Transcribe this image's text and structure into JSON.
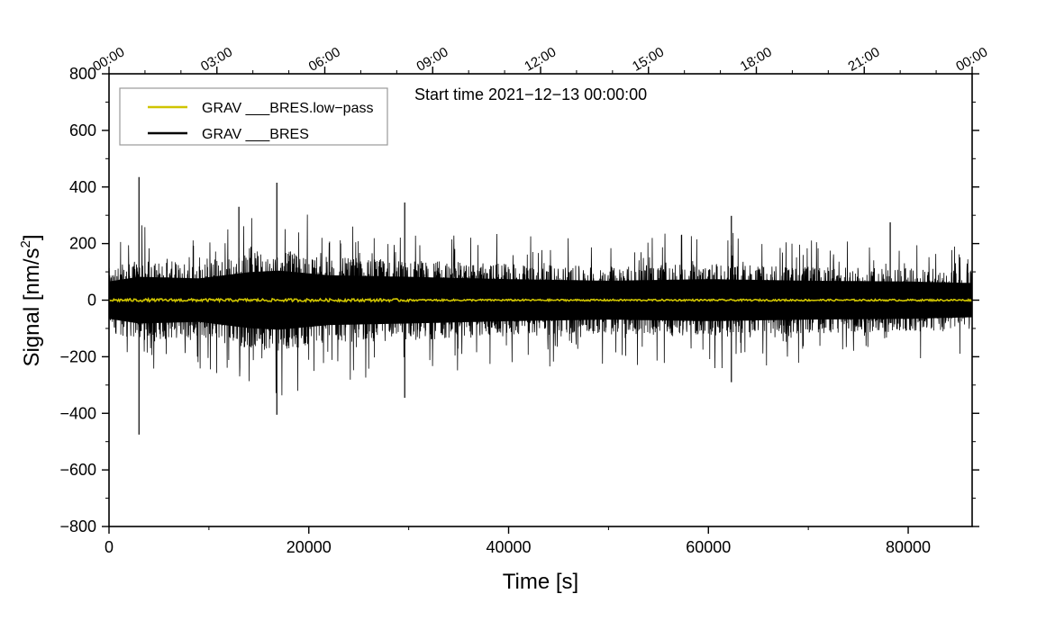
{
  "chart_data": {
    "type": "line",
    "title": "",
    "annotation": "Start time 2021−12−13 00:00:00",
    "xlabel": "Time [s]",
    "ylabel_main": "Signal [nm/s",
    "ylabel_sup": "2",
    "ylabel_end": "]",
    "xlim": [
      0,
      86400
    ],
    "ylim": [
      -800,
      800
    ],
    "x_ticks": [
      0,
      20000,
      40000,
      60000,
      80000
    ],
    "x_tick_labels": [
      "0",
      "20000",
      "40000",
      "60000",
      "80000"
    ],
    "y_ticks": [
      -800,
      -600,
      -400,
      -200,
      0,
      200,
      400,
      600,
      800
    ],
    "y_tick_labels": [
      "−800",
      "−600",
      "−400",
      "−200",
      "0",
      "200",
      "400",
      "600",
      "800"
    ],
    "top_axis_ticks": [
      0,
      10800,
      21600,
      32400,
      43200,
      54000,
      64800,
      75600,
      86400
    ],
    "top_axis_labels": [
      "00:00",
      "03:00",
      "06:00",
      "09:00",
      "12:00",
      "15:00",
      "18:00",
      "21:00",
      "00:00"
    ],
    "legend_position": "top-left",
    "series": [
      {
        "name": "GRAV ___BRES.low−pass",
        "color": "#cfc400",
        "description": "low-pass filtered residual, approx -5 to 5 nm/s2 around zero",
        "approx_amplitude": 5
      },
      {
        "name": "GRAV ___BRES",
        "color": "#000000",
        "description": "raw gravity residual, noise band approx +/-100 to +/-200 nm/s2",
        "envelope": [
          {
            "t": 0,
            "amp": 120
          },
          {
            "t": 3000,
            "amp": 150
          },
          {
            "t": 9000,
            "amp": 140
          },
          {
            "t": 14000,
            "amp": 180
          },
          {
            "t": 17000,
            "amp": 190
          },
          {
            "t": 22000,
            "amp": 160
          },
          {
            "t": 30000,
            "amp": 150
          },
          {
            "t": 40000,
            "amp": 135
          },
          {
            "t": 50000,
            "amp": 125
          },
          {
            "t": 60000,
            "amp": 135
          },
          {
            "t": 70000,
            "amp": 125
          },
          {
            "t": 80000,
            "amp": 120
          },
          {
            "t": 86400,
            "amp": 110
          }
        ],
        "spikes": [
          {
            "t": 3000,
            "value": 435
          },
          {
            "t": 3000,
            "value": -475
          },
          {
            "t": 16800,
            "value": 415
          },
          {
            "t": 16800,
            "value": -405
          },
          {
            "t": 13000,
            "value": 330
          },
          {
            "t": 29600,
            "value": 345
          },
          {
            "t": 29600,
            "value": -345
          },
          {
            "t": 62300,
            "value": 298
          },
          {
            "t": 62300,
            "value": -290
          },
          {
            "t": 78200,
            "value": 275
          }
        ]
      }
    ]
  }
}
